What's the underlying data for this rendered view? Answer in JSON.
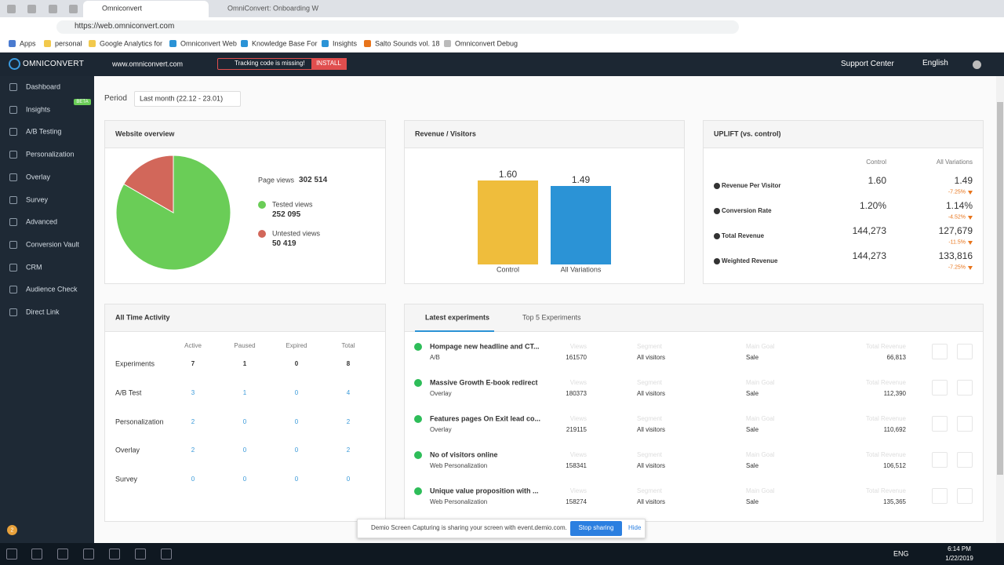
{
  "browser": {
    "tabs": [
      "Omniconvert",
      "OmniConvert: Onboarding W"
    ],
    "url": "https://web.omniconvert.com",
    "bookmarks": [
      "Apps",
      "personal",
      "Google Analytics for",
      "Omniconvert Web",
      "Knowledge Base For",
      "Insights",
      "Salto Sounds vol. 18",
      "Omniconvert Debug"
    ]
  },
  "topbar": {
    "brand": "OMNICONVERT",
    "domain": "www.omniconvert.com",
    "alert": "Tracking code is missing!",
    "alert_button": "INSTALL",
    "support": "Support Center",
    "language": "English"
  },
  "sidebar": {
    "items": [
      "Dashboard",
      "Insights",
      "A/B Testing",
      "Personalization",
      "Overlay",
      "Survey",
      "Advanced",
      "Conversion Vault",
      "CRM",
      "Audience Check",
      "Direct Link"
    ],
    "badge": "BETA",
    "counter": "2"
  },
  "period": {
    "label": "Period",
    "value": "Last month (22.12 - 23.01)"
  },
  "website_overview": {
    "title": "Website overview",
    "page_views_label": "Page views",
    "page_views": "302 514",
    "slices": [
      {
        "name": "Tested views",
        "value": 252095,
        "label": "252 095",
        "color": "#6acd57"
      },
      {
        "name": "Untested views",
        "value": 50419,
        "label": "50 419",
        "color": "#d2675a"
      }
    ]
  },
  "revenue_visitors": {
    "title": "Revenue / Visitors",
    "categories": [
      "Control",
      "All Variations"
    ],
    "values": [
      1.6,
      1.49
    ],
    "value_labels": [
      "1.60",
      "1.49"
    ],
    "colors": [
      "#efbd3c",
      "#2b93d6"
    ]
  },
  "uplift": {
    "title": "UPLIFT (vs. control)",
    "columns": [
      "Control",
      "All Variations"
    ],
    "rows": [
      {
        "label": "Revenue Per Visitor",
        "control": "1.60",
        "variation": "1.49",
        "change": "-7.25%"
      },
      {
        "label": "Conversion Rate",
        "control": "1.20%",
        "variation": "1.14%",
        "change": "-4.52%"
      },
      {
        "label": "Total Revenue",
        "control": "144,273",
        "variation": "127,679",
        "change": "-11.5%"
      },
      {
        "label": "Weighted Revenue",
        "control": "144,273",
        "variation": "133,816",
        "change": "-7.25%"
      }
    ]
  },
  "all_time": {
    "title": "All Time Activity",
    "columns": [
      "Active",
      "Paused",
      "Expired",
      "Total"
    ],
    "rows": [
      {
        "label": "Experiments",
        "values": [
          "7",
          "1",
          "0",
          "8"
        ]
      },
      {
        "label": "A/B Test",
        "values": [
          "3",
          "1",
          "0",
          "4"
        ]
      },
      {
        "label": "Personalization",
        "values": [
          "2",
          "0",
          "0",
          "2"
        ]
      },
      {
        "label": "Overlay",
        "values": [
          "2",
          "0",
          "0",
          "2"
        ]
      },
      {
        "label": "Survey",
        "values": [
          "0",
          "0",
          "0",
          "0"
        ]
      }
    ]
  },
  "experiments": {
    "tabs": [
      "Latest experiments",
      "Top 5 Experiments"
    ],
    "columns": [
      "Views",
      "Segment",
      "Main Goal",
      "Total Revenue"
    ],
    "rows": [
      {
        "name": "Hompage new headline and CT...",
        "type": "A/B",
        "views": "161570",
        "segment": "All visitors",
        "goal": "Sale",
        "revenue": "66,813"
      },
      {
        "name": "Massive Growth E-book redirect",
        "type": "Overlay",
        "views": "180373",
        "segment": "All visitors",
        "goal": "Sale",
        "revenue": "112,390"
      },
      {
        "name": "Features pages On Exit lead co...",
        "type": "Overlay",
        "views": "219115",
        "segment": "All visitors",
        "goal": "Sale",
        "revenue": "110,692"
      },
      {
        "name": "No of visitors online",
        "type": "Web Personalization",
        "views": "158341",
        "segment": "All visitors",
        "goal": "Sale",
        "revenue": "106,512"
      },
      {
        "name": "Unique value proposition with ...",
        "type": "Web Personalization",
        "views": "158274",
        "segment": "All visitors",
        "goal": "Sale",
        "revenue": "135,365"
      }
    ]
  },
  "share_bar": {
    "text": "Demio Screen Capturing is sharing your screen with event.demio.com.",
    "stop": "Stop sharing",
    "hide": "Hide"
  },
  "taskbar": {
    "language": "ENG",
    "time": "6:14 PM",
    "date": "1/22/2019"
  }
}
